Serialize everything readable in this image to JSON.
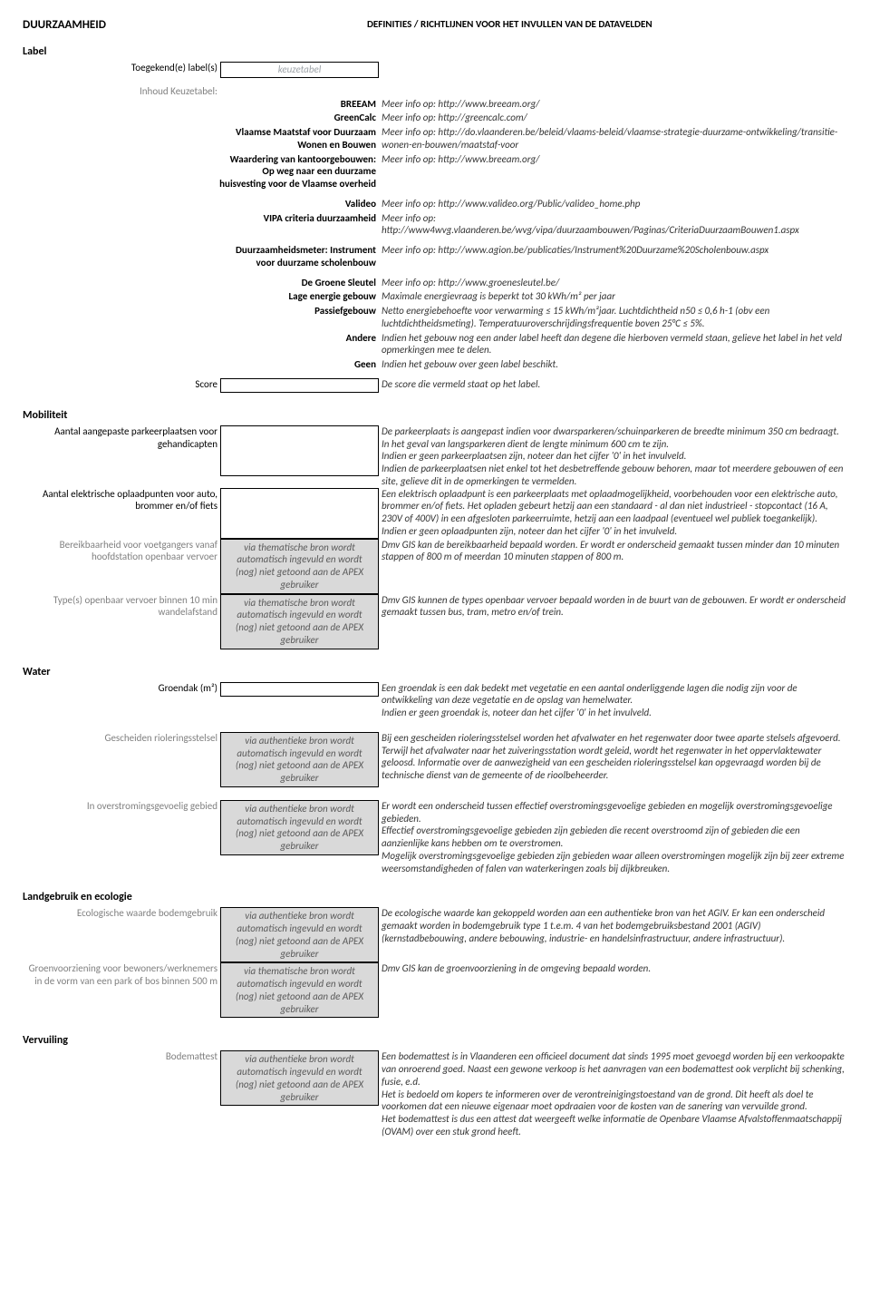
{
  "header": {
    "title": "DUURZAAMHEID",
    "subtitle": "DEFINITIES / RICHTLIJNEN VOOR HET INVULLEN VAN DE DATAVELDEN"
  },
  "labelSection": {
    "title": "Label",
    "assignedLabel": {
      "label": "Toegekend(e) label(s)",
      "placeholder": "keuzetabel"
    },
    "keuzetabelIntro": "Inhoud Keuzetabel:",
    "items": [
      {
        "key": "BREEAM",
        "desc": "Meer info op: http://www.breeam.org/"
      },
      {
        "key": "GreenCalc",
        "desc": "Meer info op: http://greencalc.com/"
      },
      {
        "key": "Vlaamse Maatstaf voor Duurzaam Wonen en Bouwen",
        "desc": "Meer info op: http://do.vlaanderen.be/beleid/vlaams-beleid/vlaamse-strategie-duurzame-ontwikkeling/transitie-wonen-en-bouwen/maatstaf-voor"
      },
      {
        "key": "Waardering van kantoorgebouwen: Op weg naar een duurzame huisvesting voor de Vlaamse overheid",
        "desc": "Meer info op: http://www.breeam.org/"
      },
      {
        "key": "Valideo",
        "desc": "Meer info op: http://www.valideo.org/Public/valideo_home.php"
      },
      {
        "key": "VIPA criteria duurzaamheid",
        "desc": "Meer info op: http://www4wvg.vlaanderen.be/wvg/vipa/duurzaambouwen/Paginas/CriteriaDuurzaamBouwen1.aspx"
      },
      {
        "key": "Duurzaamheidsmeter: Instrument voor duurzame scholenbouw",
        "desc": "Meer info op: http://www.agion.be/publicaties/Instrument%20Duurzame%20Scholenbouw.aspx"
      },
      {
        "key": "De Groene Sleutel",
        "desc": "Meer info op: http://www.groenesleutel.be/"
      },
      {
        "key": "Lage energie gebouw",
        "desc": "Maximale energievraag is beperkt tot 30 kWh/m² per jaar"
      },
      {
        "key": "Passiefgebouw",
        "desc": "Netto energiebehoefte voor verwarming ≤ 15 kWh/m²jaar. Luchtdichtheid n50 ≤ 0,6 h-1 (obv een luchtdichtheidsmeting). Temperatuuroverschrijdingsfrequentie boven 25°C ≤ 5%."
      },
      {
        "key": "Andere",
        "desc": "Indien het gebouw nog een ander label heeft dan degene die hierboven vermeld staan, gelieve het label in het veld opmerkingen mee te delen."
      },
      {
        "key": "Geen",
        "desc": "Indien het gebouw over geen label beschikt."
      }
    ],
    "score": {
      "label": "Score",
      "desc": "De score die vermeld staat op het label."
    }
  },
  "autofillAuthentic": "via authentieke bron wordt automatisch ingevuld en wordt (nog) niet getoond aan de APEX gebruiker",
  "autofillThematic": "via thematische bron wordt automatisch ingevuld en wordt (nog) niet getoond aan de APEX gebruiker",
  "mobiliteit": {
    "title": "Mobiliteit",
    "rows": [
      {
        "label": "Aantal aangepaste parkeerplaatsen voor gehandicapten",
        "field": "empty-tall",
        "desc": "De parkeerplaats is aangepast indien voor dwarsparkeren/schuinparkeren de breedte minimum 350 cm bedraagt. In het geval van langsparkeren dient de lengte minimum 600 cm te zijn.\nIndien er geen parkeerplaatsen zijn, noteer dan het cijfer '0' in het invulveld.\nIndien de parkeerplaatsen niet enkel tot het desbetreffende gebouw behoren, maar tot meerdere gebouwen of een site, gelieve dit in de opmerkingen te vermelden."
      },
      {
        "label": "Aantal elektrische oplaadpunten voor auto, brommer en/of fiets",
        "field": "empty-tall",
        "desc": "Een elektrisch oplaadpunt is een parkeerplaats met oplaadmogelijkheid, voorbehouden voor een elektrische auto, brommer en/of fiets. Het opladen gebeurt hetzij aan een standaard - al dan niet industrieel - stopcontact (16 A, 230V of 400V) in een afgesloten parkeerruimte, hetzij aan een laadpaal (eventueel wel publiek toegankelijk).\nIndien er geen oplaadpunten zijn, noteer dan het cijfer '0' in het invulveld."
      },
      {
        "label": "Bereikbaarheid voor voetgangers vanaf hoofdstation openbaar vervoer",
        "gray": true,
        "field": "thematic",
        "desc": "Dmv GIS kan de bereikbaarheid bepaald worden. Er wordt er onderscheid gemaakt tussen minder dan 10 minuten stappen of 800 m of meerdan 10 minuten stappen of 800 m."
      },
      {
        "label": "Type(s) openbaar vervoer binnen 10 min wandelafstand",
        "gray": true,
        "field": "thematic",
        "desc": "Dmv GIS kunnen de types openbaar vervoer bepaald worden in de buurt van de gebouwen. Er wordt er onderscheid gemaakt tussen bus, tram, metro en/of trein."
      }
    ]
  },
  "water": {
    "title": "Water",
    "rows": [
      {
        "label": "Groendak (m²)",
        "field": "empty",
        "desc": "Een groendak is een dak bedekt met vegetatie en een aantal onderliggende lagen die nodig zijn voor de ontwikkeling van deze vegetatie en de opslag van hemelwater.\nIndien er geen groendak is, noteer dan het cijfer '0' in het invulveld."
      },
      {
        "label": "Gescheiden rioleringsstelsel",
        "gray": true,
        "field": "authentic",
        "desc": "Bij een gescheiden rioleringsstelsel worden het afvalwater en het regenwater door twee aparte stelsels afgevoerd. Terwijl het afvalwater naar het zuiveringsstation wordt geleid, wordt het regenwater in het oppervlaktewater geloosd. Informatie over de aanwezigheid van een gescheiden rioleringsstelsel kan opgevraagd worden bij de technische dienst van de gemeente of de rioolbeheerder."
      },
      {
        "label": "In overstromingsgevoelig gebied",
        "gray": true,
        "field": "authentic",
        "desc": "Er wordt een onderscheid tussen effectief overstromingsgevoelige gebieden en mogelijk overstromingsgevoelige gebieden.\nEffectief overstromingsgevoelige gebieden zijn gebieden die recent overstroomd zijn of gebieden die een aanzienlijke kans hebben om te overstromen.\nMogelijk overstromingsgevoelige gebieden zijn gebieden waar alleen overstromingen mogelijk zijn bij zeer extreme weersomstandigheden of falen van waterkeringen zoals bij dijkbreuken."
      }
    ]
  },
  "landgebruik": {
    "title": "Landgebruik en ecologie",
    "rows": [
      {
        "label": "Ecologische waarde bodemgebruik",
        "gray": true,
        "field": "authentic",
        "desc": "De ecologische waarde kan gekoppeld worden aan een authentieke bron van het AGIV. Er kan een onderscheid gemaakt worden in bodemgebruik type 1 t.e.m. 4 van het bodemgebruiksbestand 2001 (AGIV) (kernstadbebouwing, andere bebouwing, industrie- en handelsinfrastructuur, andere infrastructuur)."
      },
      {
        "label": "Groenvoorziening voor bewoners/werknemers in de vorm van een park of bos binnen 500 m",
        "gray": true,
        "field": "thematic",
        "desc": "Dmv GIS kan de groenvoorziening in de omgeving bepaald worden."
      }
    ]
  },
  "vervuiling": {
    "title": "Vervuiling",
    "rows": [
      {
        "label": "Bodemattest",
        "gray": true,
        "field": "authentic",
        "desc": "Een bodemattest is in Vlaanderen een officieel document dat sinds 1995 moet gevoegd worden bij een verkoopakte van onroerend goed. Naast een gewone verkoop is het aanvragen van een bodemattest ook verplicht bij schenking, fusie, e.d.\nHet is bedoeld om kopers te informeren over de verontreinigingstoestand van de grond. Dit heeft als doel te voorkomen dat een nieuwe eigenaar moet opdraaien voor de kosten van de sanering van vervuilde grond.\nHet bodemattest is dus een attest dat weergeeft welke informatie de Openbare Vlaamse Afvalstoffenmaatschappij (OVAM) over een stuk grond heeft."
      }
    ]
  }
}
